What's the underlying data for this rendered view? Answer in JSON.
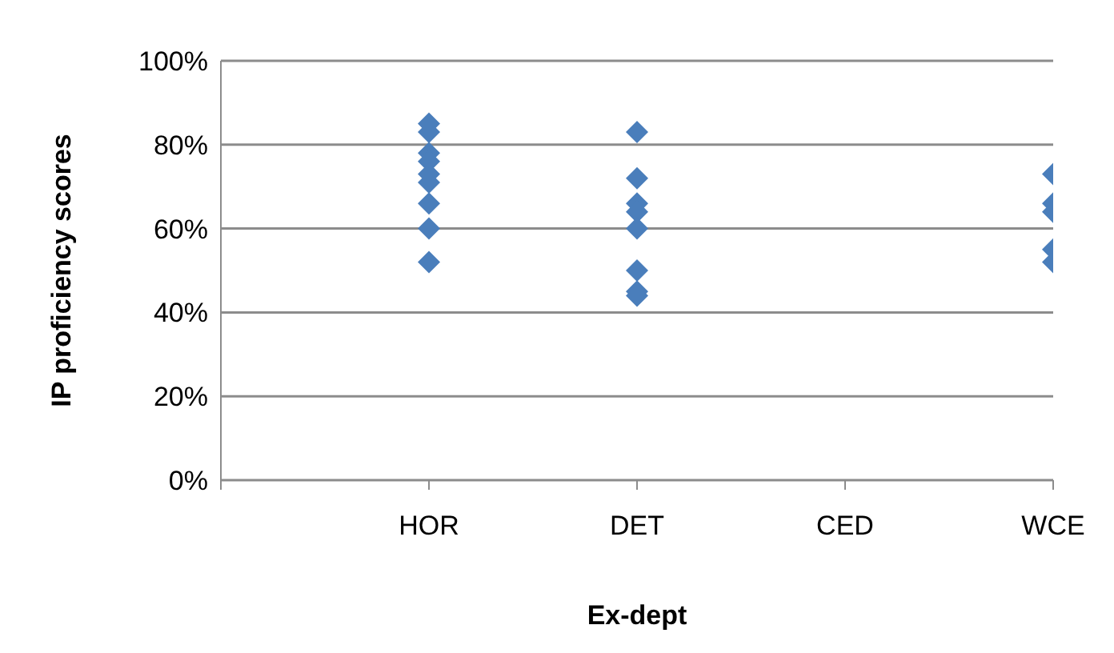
{
  "chart_data": {
    "type": "scatter",
    "xlabel": "Ex-dept",
    "ylabel": "IP proficiency scores",
    "categories": [
      null,
      "HOR",
      "DET",
      "CED",
      "WCE"
    ],
    "series": [
      {
        "color": "#4a7ebb",
        "x": [
          "HOR",
          "HOR",
          "HOR",
          "HOR",
          "HOR",
          "HOR",
          "HOR",
          "HOR",
          "HOR",
          "DET",
          "DET",
          "DET",
          "DET",
          "DET",
          "DET",
          "DET",
          "DET",
          "DET",
          "WCE",
          "WCE",
          "WCE",
          "WCE",
          "WCE"
        ],
        "values": [
          0.85,
          0.83,
          0.78,
          0.76,
          0.73,
          0.71,
          0.66,
          0.6,
          0.52,
          0.83,
          0.72,
          0.66,
          0.64,
          0.6,
          0.5,
          null,
          0.45,
          0.44,
          0.73,
          0.66,
          0.64,
          0.55,
          0.52
        ]
      }
    ],
    "ylim": [
      0,
      1
    ],
    "yticks": [
      {
        "value": 0,
        "label": "0%"
      },
      {
        "value": 0.2,
        "label": "20%"
      },
      {
        "value": 0.4,
        "label": "40%"
      },
      {
        "value": 0.6,
        "label": "60%"
      },
      {
        "value": 0.8,
        "label": "80%"
      },
      {
        "value": 1,
        "label": "100%"
      }
    ],
    "grid": "y",
    "marker": "diamond",
    "legend": false
  }
}
